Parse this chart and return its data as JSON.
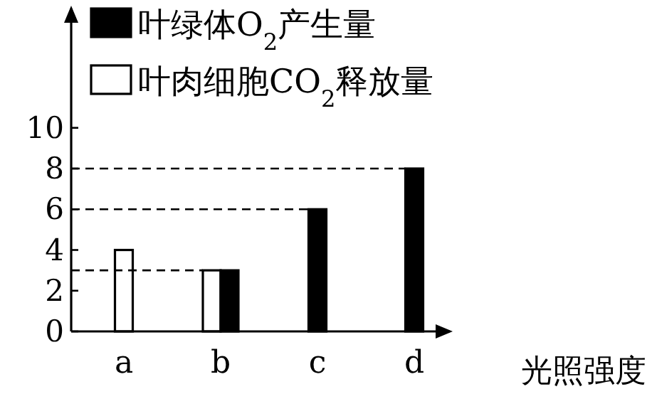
{
  "chart_data": {
    "type": "bar",
    "categories": [
      "a",
      "b",
      "c",
      "d"
    ],
    "xlabel": "光照强度",
    "ylim": [
      0,
      16
    ],
    "yticks": [
      0,
      2,
      4,
      6,
      8,
      10
    ],
    "legend": "top left",
    "series": [
      {
        "name": "叶肉细胞CO$_{2}$释放量",
        "color": "#ffffff",
        "values": [
          4,
          3,
          null,
          null
        ]
      },
      {
        "name": "叶绿体O$_{2}$产生量",
        "color": "#000000",
        "values": [
          null,
          3,
          6,
          8
        ]
      }
    ],
    "ref_lines": [
      {
        "axis": "y",
        "value": 3,
        "line_style": "dashed"
      },
      {
        "axis": "y",
        "value": 6,
        "line_style": "dashed"
      },
      {
        "axis": "y",
        "value": 8,
        "line_style": "dashed"
      }
    ]
  }
}
